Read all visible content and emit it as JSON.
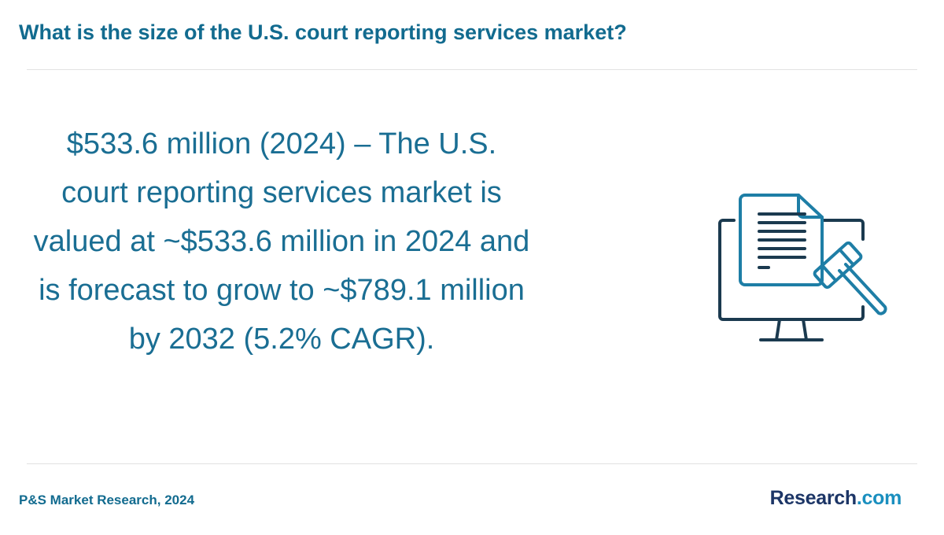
{
  "header": {
    "title": "What is the size of the U.S. court reporting services market?"
  },
  "main": {
    "statement": "$533.6 million (2024) – The U.S. court reporting services market is valued at ~$533.6 million in 2024 and is forecast to grow to ~$789.1 million by 2032 (5.2% CAGR).",
    "illustration_icon": "document-gavel-monitor-icon"
  },
  "footer": {
    "source": "P&S Market Research, 2024",
    "brand_part1": "Research",
    "brand_part2": ".com"
  },
  "colors": {
    "primary_teal": "#126b8f",
    "icon_dark": "#1b3a4f",
    "icon_teal": "#1e7ea6",
    "brand_navy": "#1c3566",
    "brand_blue": "#1a8fbf"
  }
}
